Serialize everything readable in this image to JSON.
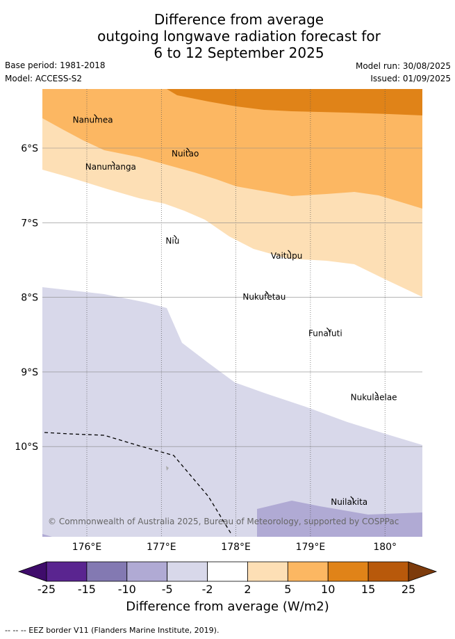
{
  "title_lines": [
    "Difference from average",
    "outgoing longwave radiation forecast for",
    "6 to 12 September 2025"
  ],
  "meta": {
    "base_period": "Base period: 1981-2018",
    "model": "Model: ACCESS-S2",
    "model_run": "Model run: 30/08/2025",
    "issued": "Issued: 01/09/2025"
  },
  "map": {
    "lon_ticks": [
      "176°E",
      "177°E",
      "178°E",
      "179°E",
      "180°"
    ],
    "lat_ticks": [
      "6°S",
      "7°S",
      "8°S",
      "9°S",
      "10°S"
    ],
    "copyright": "© Commonwealth of Australia 2025, Bureau of Meteorology, supported by COSPPac",
    "places": [
      {
        "name": "Nanumea",
        "lon": 176.08,
        "lat": -5.66
      },
      {
        "name": "Nuitao",
        "lon": 177.32,
        "lat": -6.11
      },
      {
        "name": "Nanumanga",
        "lon": 176.32,
        "lat": -6.29
      },
      {
        "name": "Niu",
        "lon": 177.15,
        "lat": -7.28
      },
      {
        "name": "Vaitupu",
        "lon": 178.68,
        "lat": -7.48
      },
      {
        "name": "Nukufetau",
        "lon": 178.38,
        "lat": -8.03
      },
      {
        "name": "Funafuti",
        "lon": 179.2,
        "lat": -8.52
      },
      {
        "name": "Nukulaelae",
        "lon": 179.85,
        "lat": -9.38
      },
      {
        "name": "Nuilakita",
        "lon": 179.52,
        "lat": -10.78
      }
    ]
  },
  "colorbar": {
    "ticks": [
      "-25",
      "-15",
      "-10",
      "-5",
      "-2",
      "2",
      "5",
      "10",
      "15",
      "25"
    ],
    "colors": [
      "#3f0c6b",
      "#5a2590",
      "#8379b2",
      "#b0aad4",
      "#d8d8ea",
      "#ffffff",
      "#fddfb5",
      "#fcb762",
      "#e08318",
      "#b8590b",
      "#7d3b0c"
    ],
    "label": "Difference from average (W/m2)"
  },
  "footer": "-- -- -- EEZ border V11 (Flanders Marine Institute, 2019)."
}
